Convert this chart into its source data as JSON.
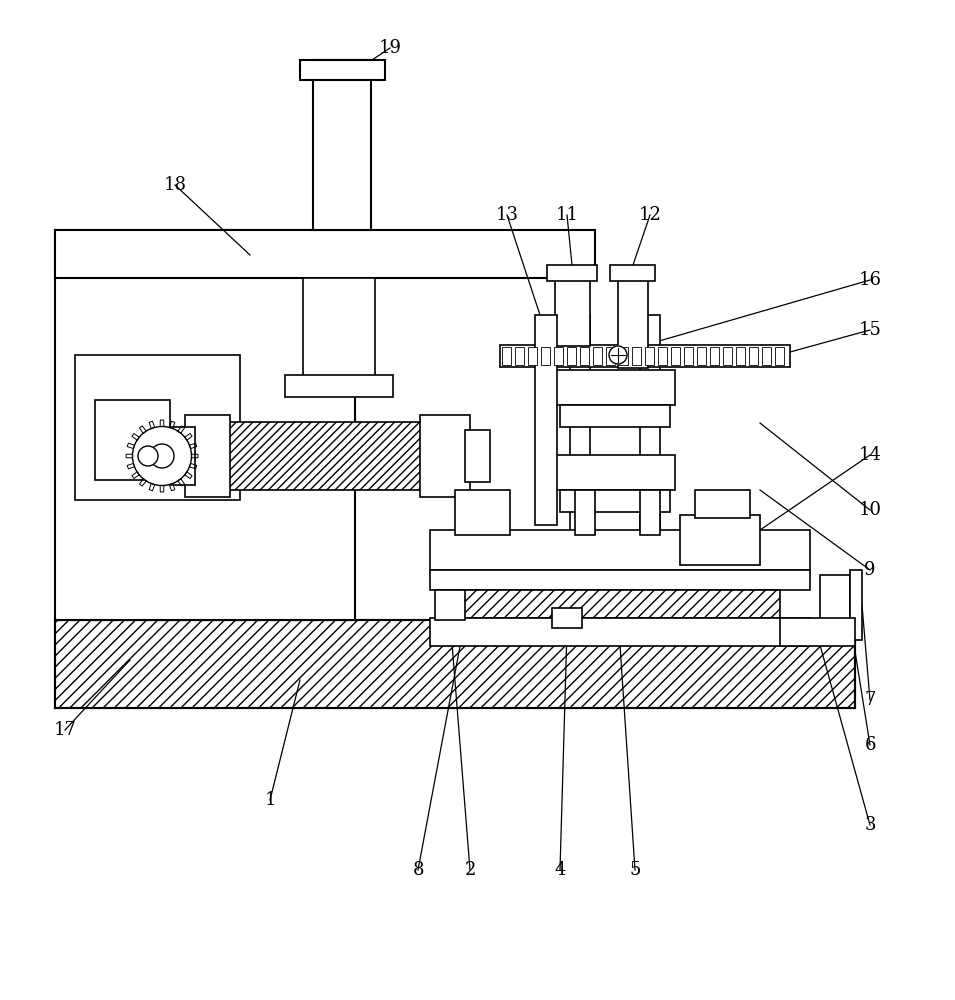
{
  "background_color": "#ffffff",
  "line_color": "#000000",
  "figure_width": 9.55,
  "figure_height": 10.0
}
